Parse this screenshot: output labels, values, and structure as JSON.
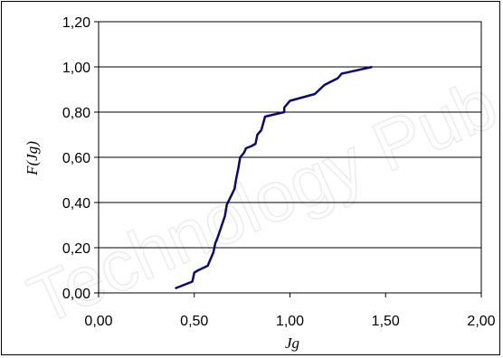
{
  "chart_data": {
    "type": "line",
    "title": "",
    "xlabel": "Jg",
    "ylabel": "F(Jg)",
    "xlim": [
      0,
      2
    ],
    "ylim": [
      0,
      1.2
    ],
    "x_ticks": [
      "0,00",
      "0,50",
      "1,00",
      "1,50",
      "2,00"
    ],
    "y_ticks": [
      "0,00",
      "0,20",
      "0,40",
      "0,60",
      "0,80",
      "1,00",
      "1,20"
    ],
    "grid": "horizontal",
    "legend": "none",
    "series": [
      {
        "color": "#0a0a6e",
        "x": [
          0.4,
          0.49,
          0.5,
          0.52,
          0.57,
          0.58,
          0.6,
          0.61,
          0.62,
          0.64,
          0.66,
          0.67,
          0.71,
          0.72,
          0.73,
          0.74,
          0.76,
          0.77,
          0.8,
          0.82,
          0.83,
          0.85,
          0.86,
          0.87,
          0.97,
          0.97,
          1.0,
          1.13,
          1.18,
          1.25,
          1.27,
          1.43
        ],
        "y": [
          0.02,
          0.05,
          0.09,
          0.1,
          0.12,
          0.14,
          0.18,
          0.22,
          0.24,
          0.29,
          0.34,
          0.39,
          0.46,
          0.51,
          0.55,
          0.6,
          0.62,
          0.64,
          0.65,
          0.66,
          0.7,
          0.72,
          0.75,
          0.78,
          0.8,
          0.82,
          0.85,
          0.88,
          0.92,
          0.95,
          0.97,
          1.0
        ]
      }
    ]
  }
}
